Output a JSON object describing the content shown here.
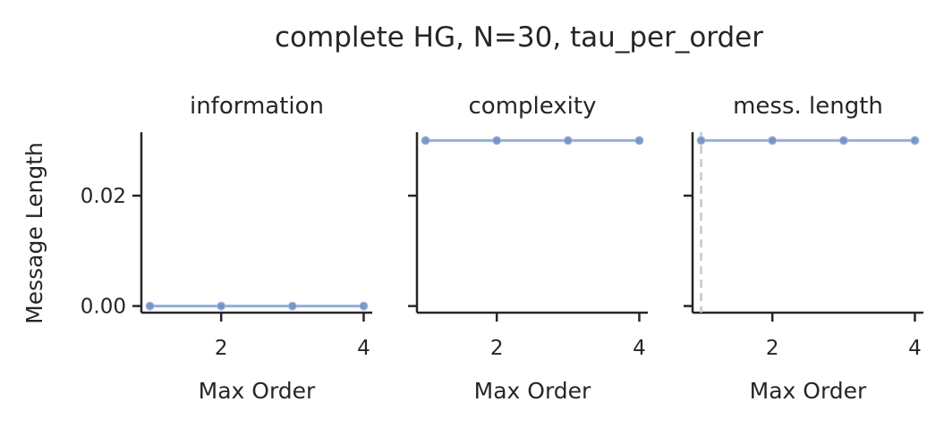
{
  "figure": {
    "title": "complete HG, N=30, tau_per_order"
  },
  "chart_data": [
    {
      "type": "line",
      "title": "information",
      "xlabel": "Max Order",
      "ylabel": "Message Length",
      "x": [
        1,
        2,
        3,
        4
      ],
      "series": [
        {
          "values": [
            0.0,
            0.0,
            0.0,
            0.0
          ],
          "color": "#7f9fcf"
        }
      ],
      "xlim": [
        0.88,
        4.12
      ],
      "ylim": [
        -0.0012,
        0.0315
      ],
      "xticks": [
        2,
        4
      ],
      "xtick_labels": [
        "2",
        "4"
      ],
      "yticks": [
        0.0,
        0.02
      ],
      "ytick_labels": [
        "0.00",
        "0.02"
      ],
      "grid": false,
      "vline": null
    },
    {
      "type": "line",
      "title": "complexity",
      "xlabel": "Max Order",
      "ylabel": "",
      "x": [
        1,
        2,
        3,
        4
      ],
      "series": [
        {
          "values": [
            0.03,
            0.03,
            0.03,
            0.03
          ],
          "color": "#7f9fcf"
        }
      ],
      "xlim": [
        0.88,
        4.12
      ],
      "ylim": [
        -0.0012,
        0.0315
      ],
      "xticks": [
        2,
        4
      ],
      "xtick_labels": [
        "2",
        "4"
      ],
      "yticks": [
        0.0,
        0.02
      ],
      "ytick_labels": [],
      "grid": false,
      "vline": null
    },
    {
      "type": "line",
      "title": "mess. length",
      "xlabel": "Max Order",
      "ylabel": "",
      "x": [
        1,
        2,
        3,
        4
      ],
      "series": [
        {
          "values": [
            0.03,
            0.03,
            0.03,
            0.03
          ],
          "color": "#7f9fcf"
        }
      ],
      "xlim": [
        0.88,
        4.12
      ],
      "ylim": [
        -0.0012,
        0.0315
      ],
      "xticks": [
        2,
        4
      ],
      "xtick_labels": [
        "2",
        "4"
      ],
      "yticks": [
        0.0,
        0.02
      ],
      "ytick_labels": [],
      "grid": false,
      "vline": {
        "x": 1,
        "color": "#c8c8c8",
        "style": "dashed"
      }
    }
  ]
}
